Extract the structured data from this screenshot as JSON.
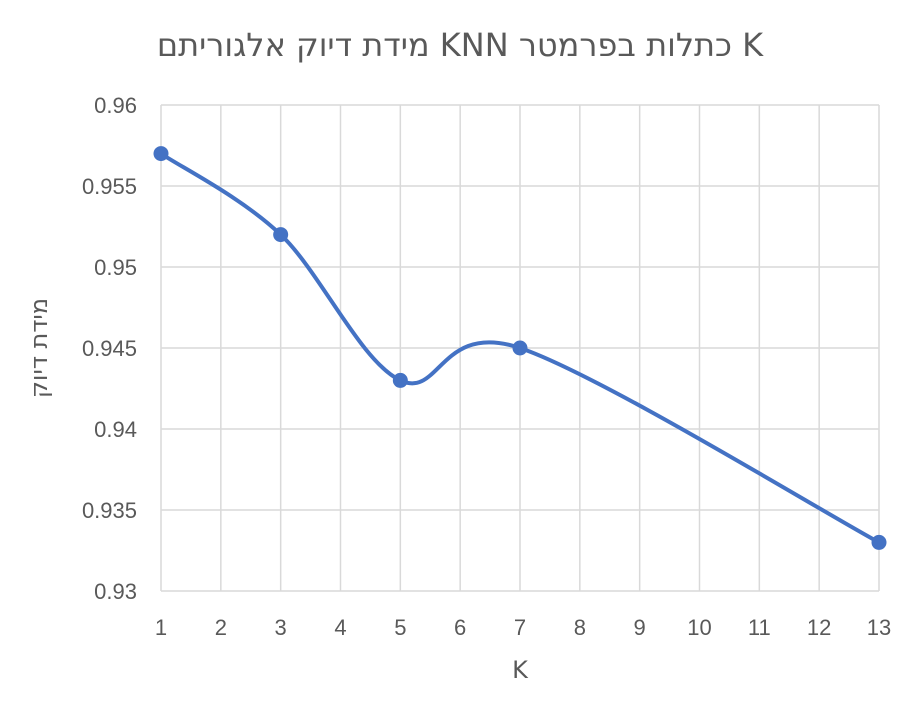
{
  "chart_data": {
    "type": "line",
    "title": "מידת דיוק אלגוריתם KNN כתלות בפרמטר K",
    "xlabel": "K",
    "ylabel": "מידת דיוק",
    "x_ticks": [
      "1",
      "2",
      "3",
      "4",
      "5",
      "6",
      "7",
      "8",
      "9",
      "10",
      "11",
      "12",
      "13"
    ],
    "y_ticks": [
      "0.93",
      "0.935",
      "0.94",
      "0.945",
      "0.95",
      "0.955",
      "0.96"
    ],
    "xlim": [
      1,
      13
    ],
    "ylim": [
      0.93,
      0.96
    ],
    "grid": true,
    "smooth": true,
    "series": [
      {
        "x": [
          1,
          3,
          5,
          7,
          13
        ],
        "y": [
          0.957,
          0.952,
          0.943,
          0.945,
          0.933
        ]
      }
    ],
    "colors": {
      "line": "#4472C4",
      "marker": "#4472C4",
      "grid": "#D9D9D9",
      "text": "#595959"
    }
  }
}
